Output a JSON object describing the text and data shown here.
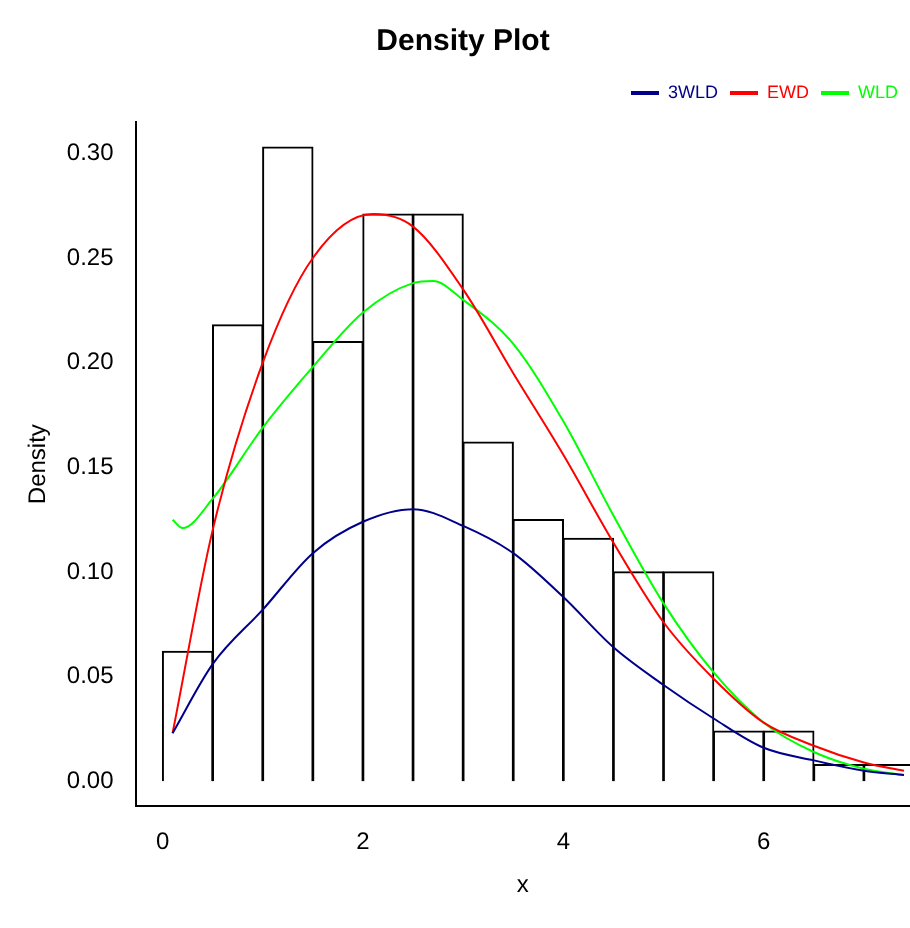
{
  "chart_data": {
    "type": "histogram",
    "title": "Density Plot",
    "xlabel": "x",
    "ylabel": "Density",
    "bins": [
      0,
      0.5,
      1,
      1.5,
      2,
      2.5,
      3,
      3.5,
      4,
      4.5,
      5,
      5.5,
      6,
      6.5,
      7,
      7.5
    ],
    "values": [
      0.062,
      0.218,
      0.303,
      0.21,
      0.271,
      0.271,
      0.162,
      0.125,
      0.116,
      0.1,
      0.1,
      0.024,
      0.024,
      0.008,
      0.008
    ],
    "color": "#ffffff",
    "xlim": [
      -0.27,
      7.46
    ],
    "ylim": [
      -0.012,
      0.315
    ],
    "xticks": [
      0,
      2,
      4,
      6
    ],
    "yticks": [
      {
        "value": 0,
        "label": "0.00"
      },
      0.05,
      {
        "value": 0.1,
        "label": "0.10"
      },
      0.15,
      {
        "value": 0.2,
        "label": "0.20"
      },
      0.25,
      {
        "value": 0.3,
        "label": "0.30"
      }
    ],
    "series": [
      {
        "type": "line",
        "name": "3WLD",
        "color": "#00008b",
        "x": [
          0.1,
          0.5,
          1,
          1.5,
          2,
          2.5,
          3,
          3.5,
          4,
          4.5,
          5,
          5.5,
          6,
          6.5,
          7,
          7.4
        ],
        "values": [
          0.023,
          0.056,
          0.082,
          0.109,
          0.124,
          0.13,
          0.122,
          0.109,
          0.088,
          0.064,
          0.046,
          0.03,
          0.016,
          0.01,
          0.005,
          0.003
        ]
      },
      {
        "type": "line",
        "name": "EWD",
        "color": "#ff0000",
        "x": [
          0.1,
          0.5,
          1,
          1.5,
          2.1,
          2.5,
          3,
          3.5,
          4,
          4.5,
          5,
          5.5,
          6,
          6.5,
          7,
          7.4
        ],
        "values": [
          0.023,
          0.12,
          0.2,
          0.25,
          0.271,
          0.265,
          0.235,
          0.195,
          0.156,
          0.114,
          0.076,
          0.049,
          0.028,
          0.017,
          0.009,
          0.005
        ]
      },
      {
        "type": "line",
        "name": "WLD",
        "color": "#00ff00",
        "x": [
          0.1,
          0.2,
          0.5,
          1,
          1.5,
          2,
          2.5,
          2.7,
          3,
          3.5,
          4,
          4.5,
          5,
          5.5,
          6,
          6.5,
          7,
          7.4
        ],
        "values": [
          0.125,
          0.121,
          0.135,
          0.169,
          0.198,
          0.224,
          0.238,
          0.239,
          0.23,
          0.209,
          0.172,
          0.127,
          0.085,
          0.052,
          0.028,
          0.014,
          0.006,
          0.003
        ]
      }
    ],
    "legend": "top right"
  }
}
